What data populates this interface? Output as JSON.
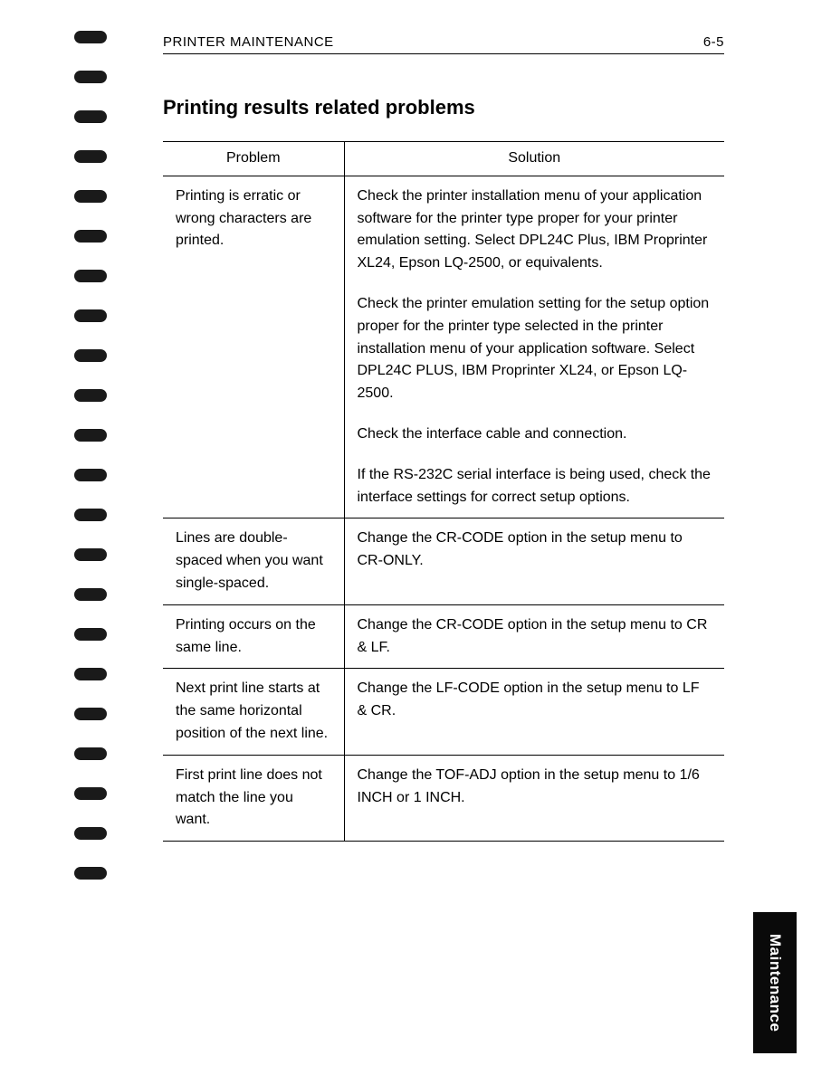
{
  "header": {
    "title": "PRINTER MAINTENANCE",
    "page_number": "6-5"
  },
  "section_heading": "Printing results related problems",
  "table": {
    "columns": [
      "Problem",
      "Solution"
    ],
    "rows": [
      {
        "problem": "Printing is erratic or wrong characters are printed.",
        "solutions": [
          "Check the printer installation menu of your application software for the printer type proper for your printer emulation setting. Select DPL24C Plus, IBM Proprinter XL24, Epson LQ-2500, or equivalents.",
          "Check the printer emulation setting for the setup option proper for the printer type selected in the printer installation menu of your application software. Select DPL24C PLUS, IBM Proprinter XL24, or Epson LQ-2500.",
          "Check the interface cable and connection.",
          "If the RS-232C serial interface is being used, check the interface settings for correct setup options."
        ]
      },
      {
        "problem": "Lines are double-spaced when you want single-spaced.",
        "solutions": [
          "Change the CR-CODE option in the setup menu to CR-ONLY."
        ]
      },
      {
        "problem": "Printing occurs on the same line.",
        "solutions": [
          "Change the CR-CODE option in the setup menu to CR & LF."
        ]
      },
      {
        "problem": "Next print line starts at the same horizontal position of the next line.",
        "solutions": [
          "Change the LF-CODE option in the setup menu to LF & CR."
        ]
      },
      {
        "problem": "First print line does not match the line you want.",
        "solutions": [
          "Change the TOF-ADJ option in the setup menu to 1/6 INCH or 1 INCH."
        ]
      }
    ]
  },
  "side_tab": "Maintenance",
  "spiral": {
    "count": 22
  },
  "colors": {
    "text": "#000000",
    "background": "#ffffff",
    "binding": "#1a1a1a",
    "tab_bg": "#0a0a0a",
    "tab_text": "#ffffff",
    "watermark": "rgba(80,140,220,0.28)",
    "border": "#000000"
  }
}
